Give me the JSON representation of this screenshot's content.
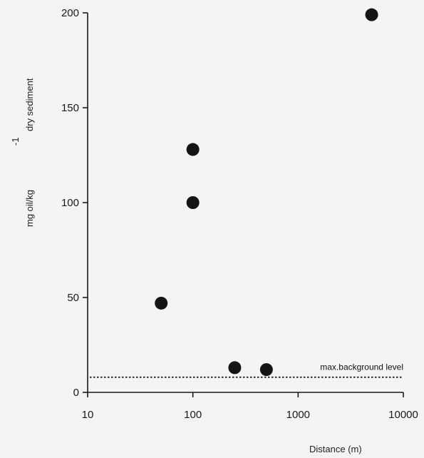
{
  "chart_data": {
    "type": "scatter",
    "title": "",
    "xlabel": "Distance  (m)",
    "ylabel": {
      "main": "mg oil/kg",
      "superscript": "-1",
      "suffix": "dry sediment"
    },
    "x_scale": "log",
    "xlim": [
      10,
      10000
    ],
    "ylim": [
      0,
      200
    ],
    "x_ticks": [
      10,
      100,
      1000,
      10000
    ],
    "x_tick_labels": [
      "10",
      "100",
      "1000",
      "10000"
    ],
    "y_ticks": [
      0,
      50,
      100,
      150,
      200
    ],
    "y_tick_labels": [
      "0",
      "50",
      "100",
      "150",
      "200"
    ],
    "grid": false,
    "points": [
      {
        "x": 50,
        "y": 47
      },
      {
        "x": 100,
        "y": 100
      },
      {
        "x": 100,
        "y": 128
      },
      {
        "x": 250,
        "y": 13
      },
      {
        "x": 500,
        "y": 12
      },
      {
        "x": 5000,
        "y": 199
      }
    ],
    "reference_line": {
      "y": 8,
      "label": "max.background level",
      "style": "dotted"
    },
    "colors": {
      "points": "#141414",
      "axes": "#1a1a1a",
      "background": "#f4f4f2"
    }
  }
}
